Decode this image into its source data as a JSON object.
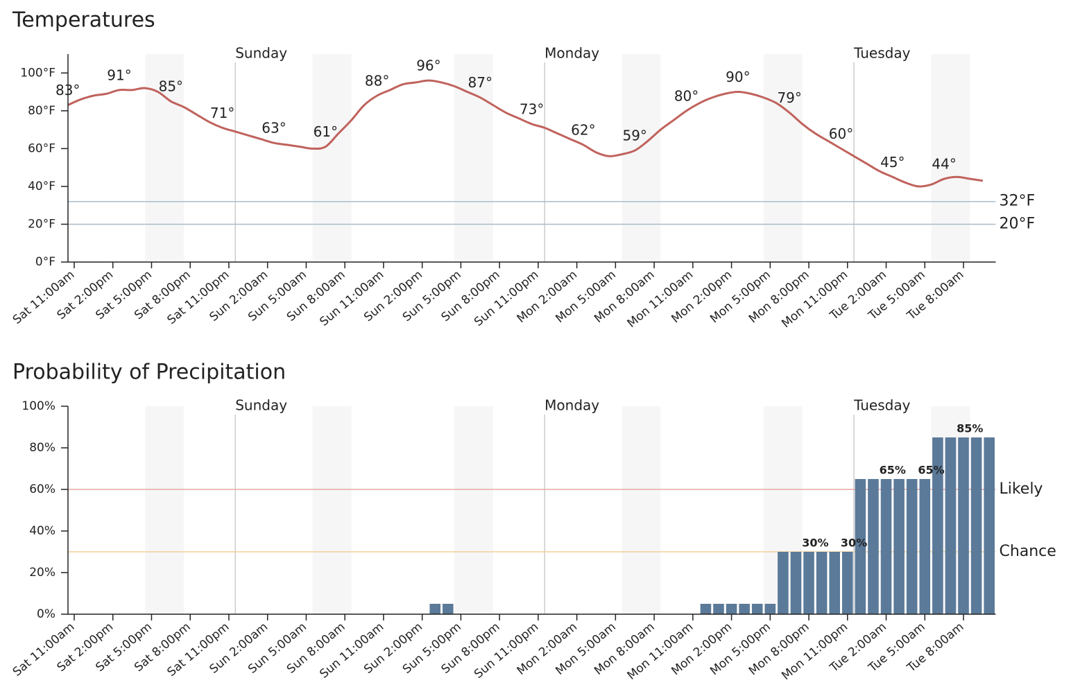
{
  "chart_data": [
    {
      "type": "line",
      "title": "Temperatures",
      "color": "#c0625c",
      "categories": [
        "Sat 11:00am",
        null,
        null,
        "Sat 2:00pm",
        null,
        null,
        "Sat 5:00pm",
        null,
        null,
        "Sat 8:00pm",
        null,
        null,
        "Sat 11:00pm",
        null,
        null,
        "Sun 2:00am",
        null,
        null,
        "Sun 5:00am",
        null,
        null,
        "Sun 8:00am",
        null,
        null,
        "Sun 11:00am",
        null,
        null,
        "Sun 2:00pm",
        null,
        null,
        "Sun 5:00pm",
        null,
        null,
        "Sun 8:00pm",
        null,
        null,
        "Sun 11:00pm",
        null,
        null,
        "Mon 2:00am",
        null,
        null,
        "Mon 5:00am",
        null,
        null,
        "Mon 8:00am",
        null,
        null,
        "Mon 11:00am",
        null,
        null,
        "Mon 2:00pm",
        null,
        null,
        "Mon 5:00pm",
        null,
        null,
        "Mon 8:00pm",
        null,
        null,
        "Mon 11:00pm",
        null,
        null,
        "Tue 2:00am",
        null,
        null,
        "Tue 5:00am",
        null,
        null,
        "Tue 8:00am",
        null,
        null
      ],
      "values": [
        83,
        86,
        88,
        89,
        91,
        91,
        92,
        90,
        85,
        82,
        78,
        74,
        71,
        69,
        67,
        65,
        63,
        62,
        61,
        60,
        61,
        68,
        75,
        83,
        88,
        91,
        94,
        95,
        96,
        95,
        93,
        90,
        87,
        83,
        79,
        76,
        73,
        71,
        68,
        65,
        62,
        58,
        56,
        57,
        59,
        64,
        70,
        75,
        80,
        84,
        87,
        89,
        90,
        89,
        87,
        84,
        79,
        73,
        68,
        64,
        60,
        56,
        52,
        48,
        45,
        42,
        40,
        41,
        44,
        45,
        44,
        43
      ],
      "value_labels": [
        "83°",
        null,
        null,
        null,
        "91°",
        null,
        null,
        null,
        "85°",
        null,
        null,
        null,
        "71°",
        null,
        null,
        null,
        "63°",
        null,
        null,
        null,
        "61°",
        null,
        null,
        null,
        "88°",
        null,
        null,
        null,
        "96°",
        null,
        null,
        null,
        "87°",
        null,
        null,
        null,
        "73°",
        null,
        null,
        null,
        "62°",
        null,
        null,
        null,
        "59°",
        null,
        null,
        null,
        "80°",
        null,
        null,
        null,
        "90°",
        null,
        null,
        null,
        "79°",
        null,
        null,
        null,
        "60°",
        null,
        null,
        null,
        "45°",
        null,
        null,
        null,
        "44°",
        null,
        null,
        null
      ],
      "ylim": [
        0,
        110
      ],
      "yticks": [
        {
          "value": 0,
          "label": "0°F"
        },
        {
          "value": 20,
          "label": "20°F"
        },
        {
          "value": 40,
          "label": "40°F"
        },
        {
          "value": 60,
          "label": "60°F"
        },
        {
          "value": 80,
          "label": "80°F"
        },
        {
          "value": 100,
          "label": "100°F"
        }
      ],
      "thresholds": [
        {
          "value": 32,
          "label": "32°F",
          "color": "#a9bccb",
          "label_color": "#2d4c66"
        },
        {
          "value": 20,
          "label": "20°F",
          "color": "#a9bccb",
          "label_color": "#2d4c66"
        }
      ],
      "day_labels": [
        "Sunday",
        "Monday",
        "Tuesday"
      ]
    },
    {
      "type": "bar",
      "title": "Probability of Precipitation",
      "color": "#5b7a99",
      "categories": [
        "Sat 11:00am",
        null,
        null,
        "Sat 2:00pm",
        null,
        null,
        "Sat 5:00pm",
        null,
        null,
        "Sat 8:00pm",
        null,
        null,
        "Sat 11:00pm",
        null,
        null,
        "Sun 2:00am",
        null,
        null,
        "Sun 5:00am",
        null,
        null,
        "Sun 8:00am",
        null,
        null,
        "Sun 11:00am",
        null,
        null,
        "Sun 2:00pm",
        null,
        null,
        "Sun 5:00pm",
        null,
        null,
        "Sun 8:00pm",
        null,
        null,
        "Sun 11:00pm",
        null,
        null,
        "Mon 2:00am",
        null,
        null,
        "Mon 5:00am",
        null,
        null,
        "Mon 8:00am",
        null,
        null,
        "Mon 11:00am",
        null,
        null,
        "Mon 2:00pm",
        null,
        null,
        "Mon 5:00pm",
        null,
        null,
        "Mon 8:00pm",
        null,
        null,
        "Mon 11:00pm",
        null,
        null,
        "Tue 2:00am",
        null,
        null,
        "Tue 5:00am",
        null,
        null,
        "Tue 8:00am",
        null,
        null
      ],
      "values": [
        0,
        0,
        0,
        0,
        0,
        0,
        0,
        0,
        0,
        0,
        0,
        0,
        0,
        0,
        0,
        0,
        0,
        0,
        0,
        0,
        0,
        0,
        0,
        0,
        0,
        0,
        0,
        0,
        5,
        5,
        0,
        0,
        0,
        0,
        0,
        0,
        0,
        0,
        0,
        0,
        0,
        0,
        0,
        0,
        0,
        0,
        0,
        0,
        0,
        5,
        5,
        5,
        5,
        5,
        5,
        30,
        30,
        30,
        30,
        30,
        30,
        65,
        65,
        65,
        65,
        65,
        65,
        85,
        85,
        85,
        85,
        85
      ],
      "value_labels": [
        null,
        null,
        null,
        null,
        null,
        null,
        null,
        null,
        null,
        null,
        null,
        null,
        null,
        null,
        null,
        null,
        null,
        null,
        null,
        null,
        null,
        null,
        null,
        null,
        null,
        null,
        null,
        null,
        null,
        null,
        null,
        null,
        null,
        null,
        null,
        null,
        null,
        null,
        null,
        null,
        null,
        null,
        null,
        null,
        null,
        null,
        null,
        null,
        null,
        null,
        null,
        null,
        null,
        null,
        null,
        null,
        null,
        "30%",
        null,
        null,
        "30%",
        null,
        null,
        "65%",
        null,
        null,
        "65%",
        null,
        null,
        "85%",
        null,
        null
      ],
      "ylim": [
        0,
        100
      ],
      "yticks": [
        {
          "value": 0,
          "label": "0%"
        },
        {
          "value": 20,
          "label": "20%"
        },
        {
          "value": 40,
          "label": "40%"
        },
        {
          "value": 60,
          "label": "60%"
        },
        {
          "value": 80,
          "label": "80%"
        },
        {
          "value": 100,
          "label": "100%"
        }
      ],
      "thresholds": [
        {
          "value": 60,
          "label": "Likely",
          "color": "#e8a5a5",
          "label_color": "#5c1f24"
        },
        {
          "value": 30,
          "label": "Chance",
          "color": "#f2cf9a",
          "label_color": "#4d3518"
        }
      ],
      "day_labels": [
        "Sunday",
        "Monday",
        "Tuesday"
      ]
    }
  ]
}
